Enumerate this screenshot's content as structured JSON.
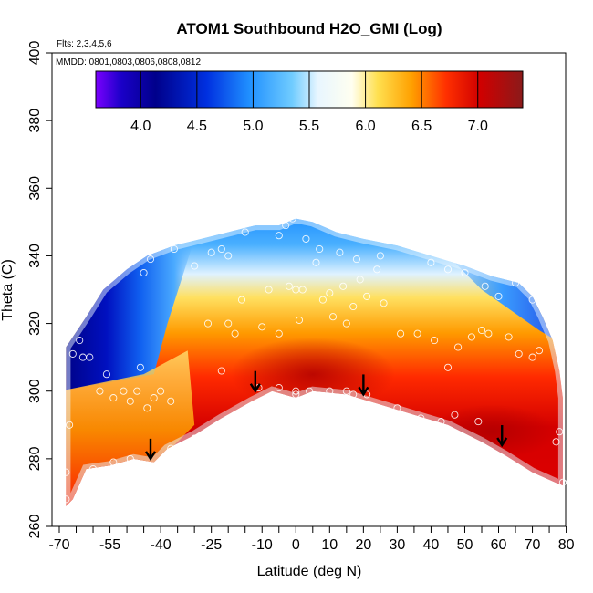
{
  "chart_data": {
    "type": "heatmap",
    "title": "ATOM1 Southbound H2O_GMI (Log)",
    "subtitle_flights": "Flts: 2,3,4,5,6",
    "subtitle_dates": "MMDD: 0801,0803,0806,0808,0812",
    "xlabel": "Latitude (deg N)",
    "ylabel": "Theta (C)",
    "xlim": [
      -70,
      82
    ],
    "ylim": [
      260,
      400
    ],
    "x_tick_labels": [
      "-70",
      "-55",
      "-40",
      "-25",
      "-10",
      "0",
      "10",
      "20",
      "30",
      "40",
      "50",
      "60",
      "70",
      "80"
    ],
    "x_tick_values": [
      -70,
      -55,
      -40,
      -25,
      -10,
      0,
      10,
      20,
      30,
      40,
      50,
      60,
      70,
      80
    ],
    "y_tick_values": [
      260,
      280,
      300,
      320,
      340,
      360,
      380,
      400
    ],
    "y_tick_labels": [
      "260",
      "280",
      "300",
      "320",
      "340",
      "360",
      "380",
      "400"
    ],
    "colorbar": {
      "range": [
        3.6,
        7.4
      ],
      "tick_values": [
        4.0,
        4.5,
        5.0,
        5.5,
        6.0,
        6.5,
        7.0
      ],
      "tick_labels": [
        "4.0",
        "4.5",
        "5.0",
        "5.5",
        "6.0",
        "6.5",
        "7.0"
      ],
      "colors": [
        "#7b00ff",
        "#00008b",
        "#0000cd",
        "#1e6fff",
        "#4ab0ff",
        "#cfeeff",
        "#ffffc0",
        "#ffd000",
        "#ff8000",
        "#ff1a00",
        "#cc0000",
        "#8b1a1a"
      ]
    },
    "arrows_at_latitude": [
      -43,
      -12,
      20,
      61
    ],
    "arrows_at_theta": [
      282,
      302,
      301,
      286
    ],
    "observation_points": [
      [
        -67,
        290
      ],
      [
        -66,
        311
      ],
      [
        -64,
        315
      ],
      [
        -63,
        310
      ],
      [
        -61,
        310
      ],
      [
        -58,
        300
      ],
      [
        -56,
        305
      ],
      [
        -54,
        298
      ],
      [
        -51,
        300
      ],
      [
        -49,
        297
      ],
      [
        -47,
        300
      ],
      [
        -46,
        307
      ],
      [
        -44,
        295
      ],
      [
        -42,
        298
      ],
      [
        -40,
        300
      ],
      [
        -37,
        297
      ],
      [
        -60,
        277
      ],
      [
        -54,
        279
      ],
      [
        -49,
        280
      ],
      [
        -43,
        278
      ],
      [
        -37,
        283
      ],
      [
        -30,
        286
      ],
      [
        -45,
        335
      ],
      [
        -43,
        339
      ],
      [
        -36,
        342
      ],
      [
        -30,
        337
      ],
      [
        -25,
        341
      ],
      [
        -22,
        342
      ],
      [
        -20,
        340
      ],
      [
        -15,
        347
      ],
      [
        -22,
        306
      ],
      [
        -26,
        320
      ],
      [
        -20,
        320
      ],
      [
        -18,
        317
      ],
      [
        -16,
        327
      ],
      [
        -10,
        319
      ],
      [
        -8,
        330
      ],
      [
        -5,
        317
      ],
      [
        -2,
        331
      ],
      [
        0,
        330
      ],
      [
        1,
        321
      ],
      [
        2,
        330
      ],
      [
        6,
        338
      ],
      [
        8,
        327
      ],
      [
        10,
        329
      ],
      [
        11,
        322
      ],
      [
        14,
        331
      ],
      [
        15,
        320
      ],
      [
        17,
        325
      ],
      [
        19,
        333
      ],
      [
        21,
        328
      ],
      [
        24,
        336
      ],
      [
        26,
        326
      ],
      [
        -11,
        301
      ],
      [
        -5,
        301
      ],
      [
        0,
        299
      ],
      [
        0,
        300
      ],
      [
        4,
        300
      ],
      [
        10,
        300
      ],
      [
        15,
        300
      ],
      [
        17,
        299
      ],
      [
        21,
        299
      ],
      [
        30,
        295
      ],
      [
        37,
        292
      ],
      [
        43,
        291
      ],
      [
        47,
        293
      ],
      [
        54,
        291
      ],
      [
        25,
        340
      ],
      [
        30,
        345
      ],
      [
        35,
        343
      ],
      [
        40,
        338
      ],
      [
        45,
        336
      ],
      [
        50,
        335
      ],
      [
        56,
        331
      ],
      [
        60,
        328
      ],
      [
        65,
        332
      ],
      [
        70,
        327
      ],
      [
        31,
        317
      ],
      [
        36,
        317
      ],
      [
        41,
        315
      ],
      [
        45,
        307
      ],
      [
        48,
        313
      ],
      [
        52,
        316
      ],
      [
        55,
        318
      ],
      [
        57,
        317
      ],
      [
        63,
        316
      ],
      [
        66,
        311
      ],
      [
        70,
        310
      ],
      [
        72,
        312
      ],
      [
        78,
        288
      ],
      [
        77,
        285
      ],
      [
        79,
        273
      ],
      [
        -3,
        349
      ],
      [
        -5,
        346
      ],
      [
        -1,
        351
      ],
      [
        3,
        345
      ],
      [
        7,
        342
      ],
      [
        13,
        341
      ],
      [
        18,
        339
      ],
      [
        -68,
        268
      ],
      [
        -68,
        276
      ]
    ]
  }
}
